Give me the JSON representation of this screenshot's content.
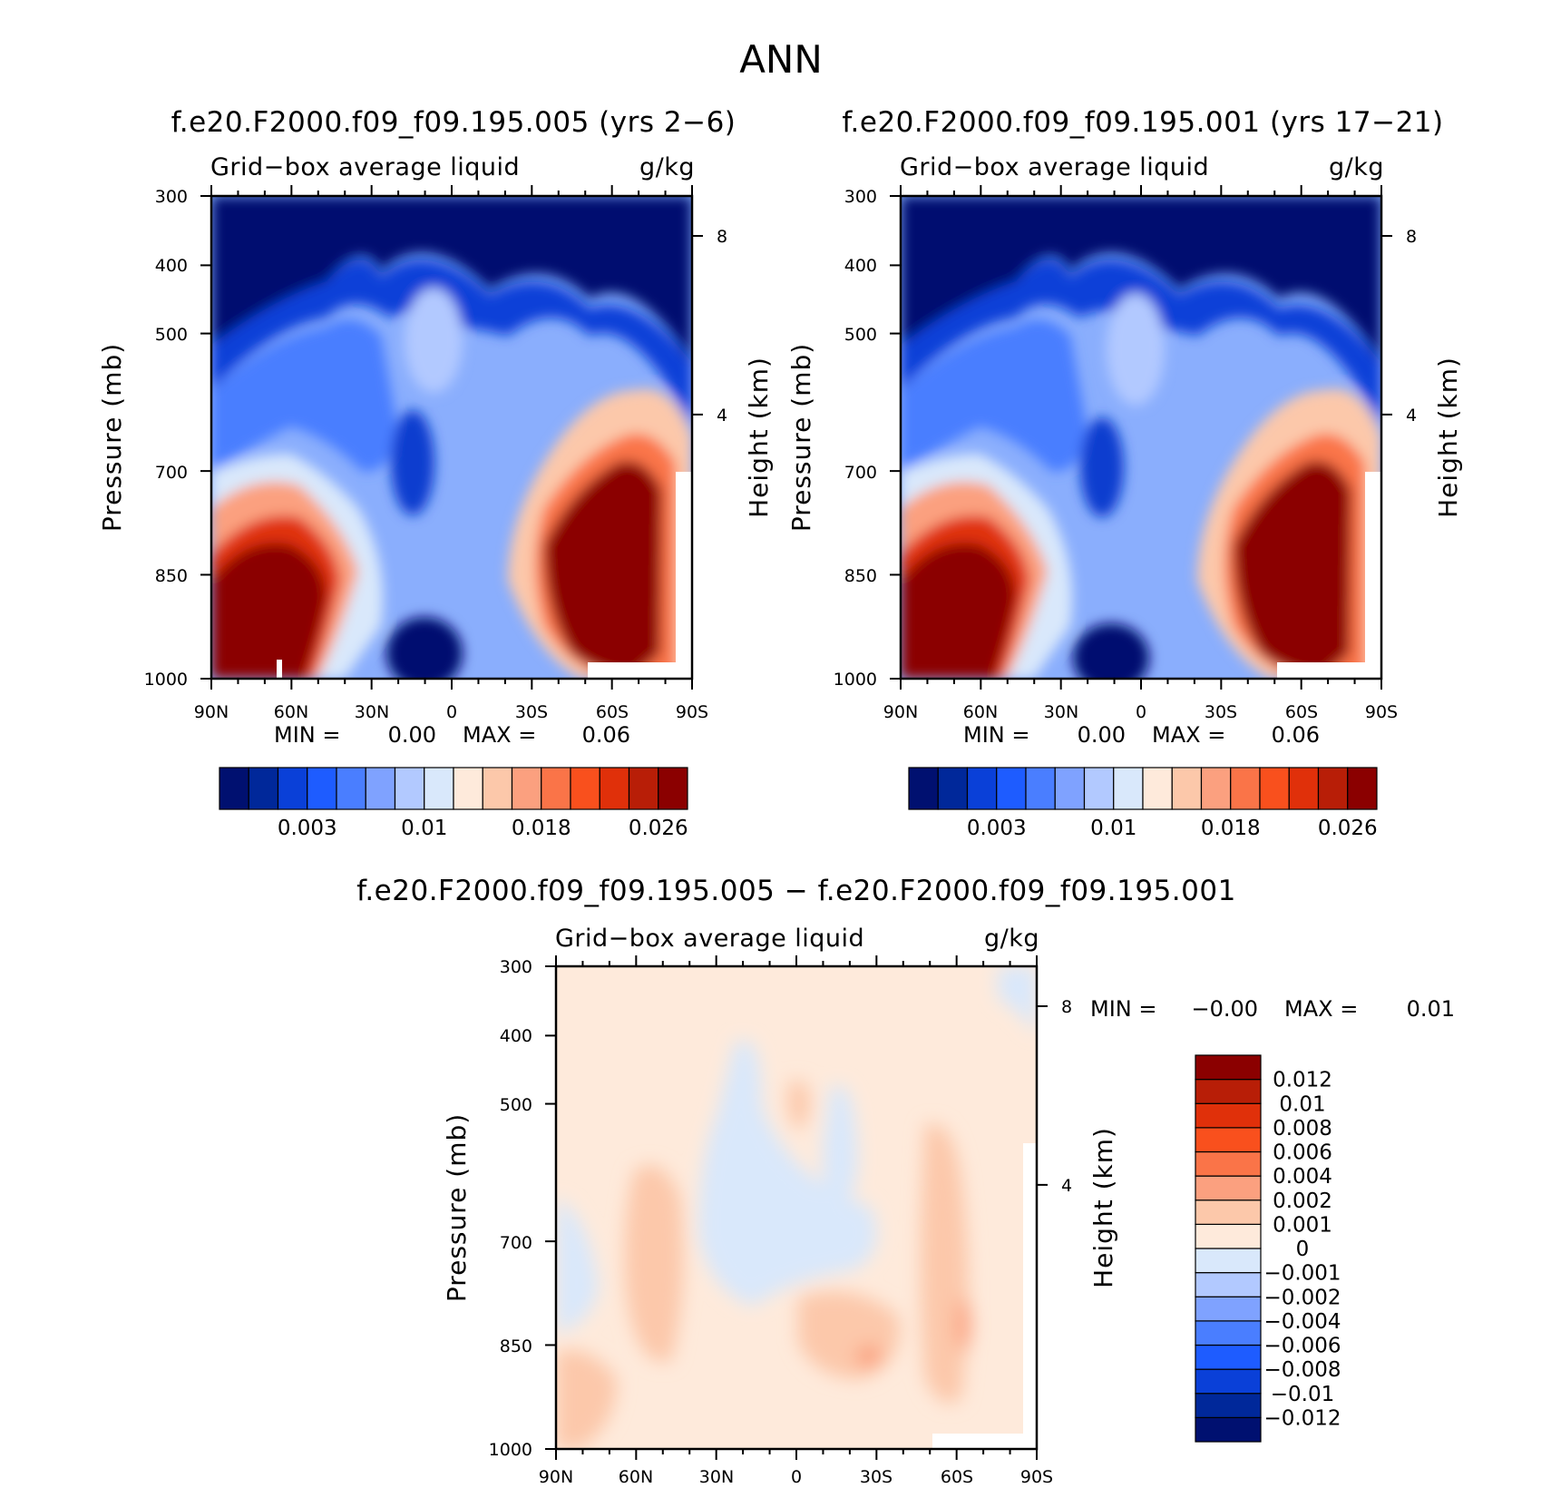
{
  "figure": {
    "title": "ANN"
  },
  "chart_data": [
    {
      "type": "heatmap",
      "id": "panel1",
      "title": "f.e20.F2000.f09_f09.195.005 (yrs 2−6)",
      "variable": "Grid−box average liquid",
      "units": "g/kg",
      "xlabel": "",
      "ylabel": "Pressure (mb)",
      "ylabel_right": "Height (km)",
      "x_ticks": [
        "90N",
        "60N",
        "30N",
        "0",
        "30S",
        "60S",
        "90S"
      ],
      "y_ticks": [
        "300",
        "400",
        "500",
        "700",
        "850",
        "1000"
      ],
      "y2_ticks": [
        "8",
        "4"
      ],
      "min_label": "MIN =",
      "min_value": "0.00",
      "max_label": "MAX =",
      "max_value": "0.06",
      "colorbar": {
        "orientation": "horizontal",
        "colors": [
          "#001070",
          "#00289a",
          "#0a40d8",
          "#1e5cff",
          "#4a7eff",
          "#7fa2ff",
          "#b2c9ff",
          "#d9e8fb",
          "#feeadb",
          "#fcc8aa",
          "#fba07f",
          "#fa7448",
          "#f9501d",
          "#e0300a",
          "#b81e07",
          "#8b0000"
        ],
        "labels": [
          "0.003",
          "0.01",
          "0.018",
          "0.026"
        ]
      }
    },
    {
      "type": "heatmap",
      "id": "panel2",
      "title": "f.e20.F2000.f09_f09.195.001 (yrs 17−21)",
      "variable": "Grid−box average liquid",
      "units": "g/kg",
      "xlabel": "",
      "ylabel": "Pressure (mb)",
      "ylabel_right": "Height (km)",
      "x_ticks": [
        "90N",
        "60N",
        "30N",
        "0",
        "30S",
        "60S",
        "90S"
      ],
      "y_ticks": [
        "300",
        "400",
        "500",
        "700",
        "850",
        "1000"
      ],
      "y2_ticks": [
        "8",
        "4"
      ],
      "min_label": "MIN =",
      "min_value": "0.00",
      "max_label": "MAX =",
      "max_value": "0.06",
      "colorbar": {
        "orientation": "horizontal",
        "colors": [
          "#001070",
          "#00289a",
          "#0a40d8",
          "#1e5cff",
          "#4a7eff",
          "#7fa2ff",
          "#b2c9ff",
          "#d9e8fb",
          "#feeadb",
          "#fcc8aa",
          "#fba07f",
          "#fa7448",
          "#f9501d",
          "#e0300a",
          "#b81e07",
          "#8b0000"
        ],
        "labels": [
          "0.003",
          "0.01",
          "0.018",
          "0.026"
        ]
      }
    },
    {
      "type": "heatmap",
      "id": "panel3",
      "title": "f.e20.F2000.f09_f09.195.005 − f.e20.F2000.f09_f09.195.001",
      "variable": "Grid−box average liquid",
      "units": "g/kg",
      "xlabel": "",
      "ylabel": "Pressure (mb)",
      "ylabel_right": "Height (km)",
      "x_ticks": [
        "90N",
        "60N",
        "30N",
        "0",
        "30S",
        "60S",
        "90S"
      ],
      "y_ticks": [
        "300",
        "400",
        "500",
        "700",
        "850",
        "1000"
      ],
      "y2_ticks": [
        "8",
        "4"
      ],
      "min_label": "MIN =",
      "min_value": "−0.00",
      "max_label": "MAX =",
      "max_value": "0.01",
      "colorbar": {
        "orientation": "vertical",
        "colors": [
          "#001070",
          "#00289a",
          "#0a40d8",
          "#1e5cff",
          "#4a7eff",
          "#7fa2ff",
          "#b2c9ff",
          "#d9e8fb",
          "#feeadb",
          "#fcc8aa",
          "#fba07f",
          "#fa7448",
          "#f9501d",
          "#e0300a",
          "#b81e07",
          "#8b0000"
        ],
        "labels": [
          "0.012",
          "0.01",
          "0.008",
          "0.006",
          "0.004",
          "0.002",
          "0.001",
          "0",
          "−0.001",
          "−0.002",
          "−0.004",
          "−0.006",
          "−0.008",
          "−0.01",
          "−0.012"
        ]
      }
    }
  ]
}
